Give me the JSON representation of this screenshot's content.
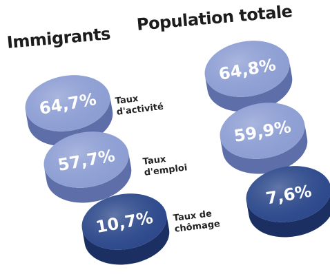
{
  "chart_data": {
    "type": "table",
    "series": [
      {
        "name": "Immigrants",
        "values": [
          64.7,
          57.7,
          10.7
        ]
      },
      {
        "name": "Population totale",
        "values": [
          64.8,
          59.9,
          7.6
        ]
      }
    ],
    "categories": [
      "Taux\nd'activité",
      "Taux\nd'emploi",
      "Taux de\nchômage"
    ],
    "value_labels": [
      [
        "64,7%",
        "57,7%",
        "10,7%"
      ],
      [
        "64,8%",
        "59,9%",
        "7,6%"
      ]
    ],
    "colors": {
      "light_top": "#8d9ed3",
      "light_side": "#5d6ea8",
      "dark_top": "#2e4a8c",
      "dark_side": "#1b2f63",
      "label_text": "#ffffff"
    }
  }
}
